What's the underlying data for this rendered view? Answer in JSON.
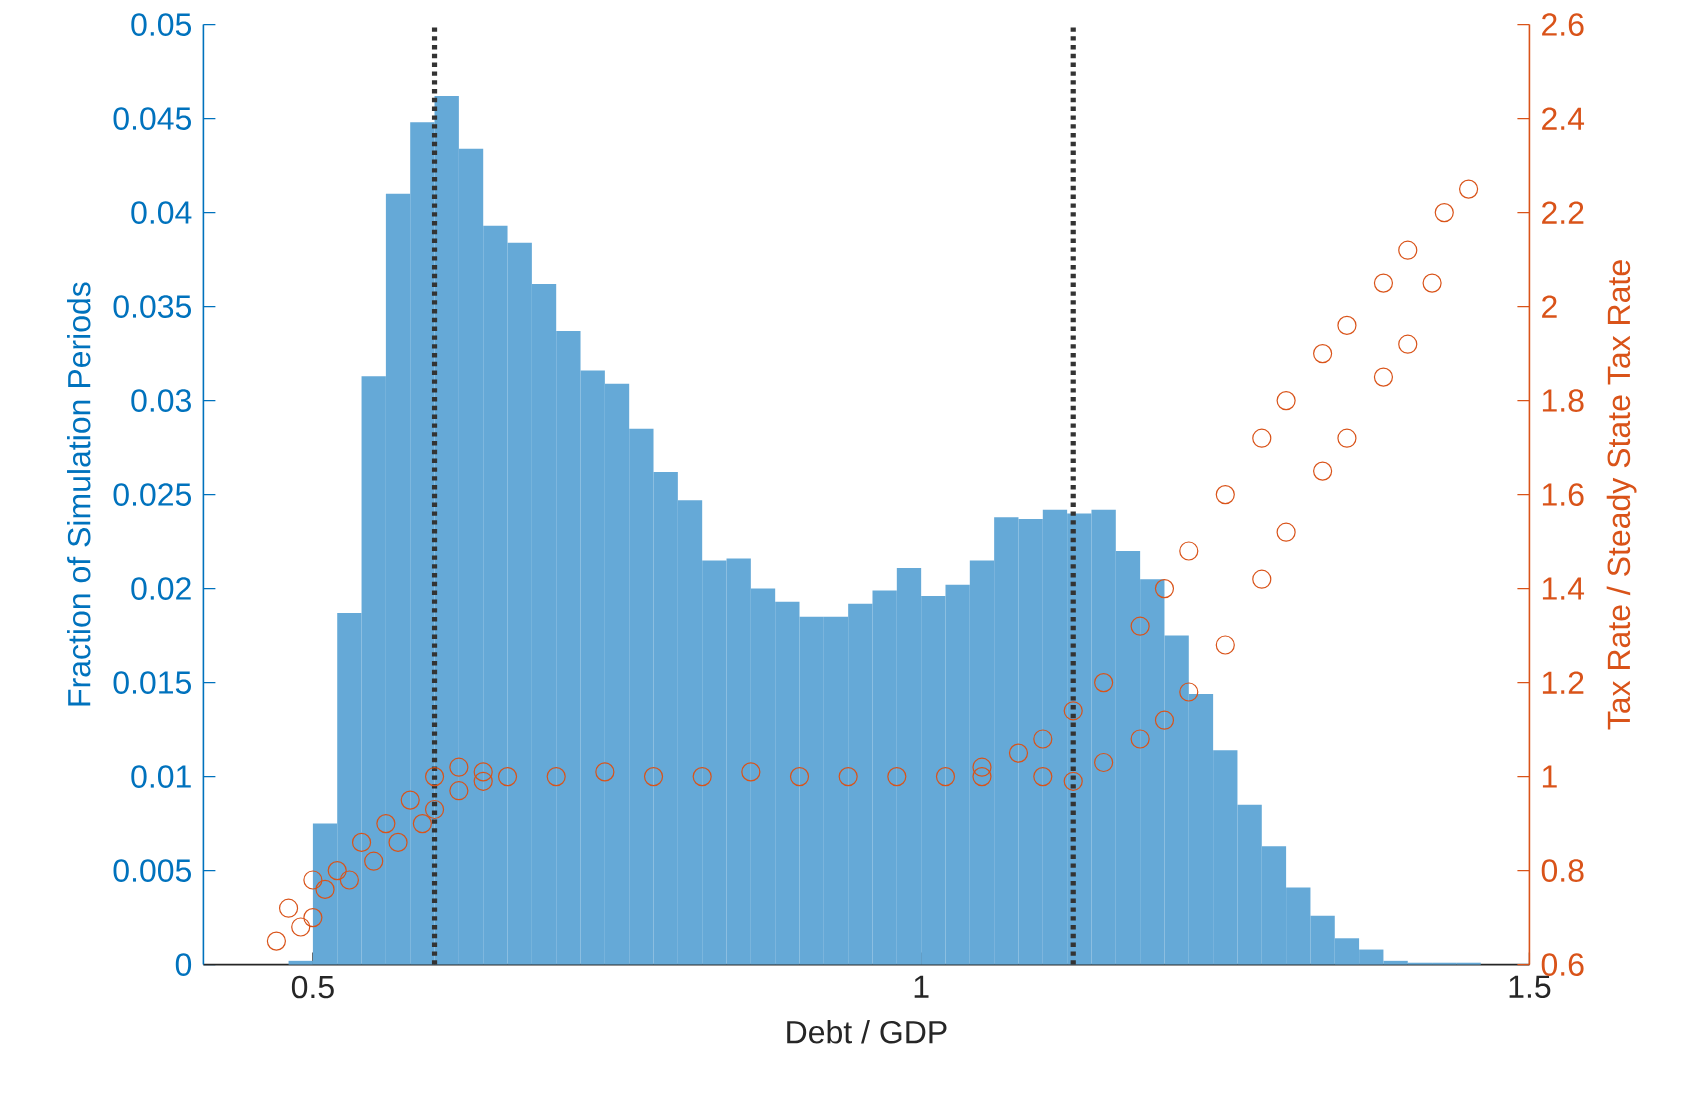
{
  "chart_data": {
    "type": "histogram",
    "xlabel": "Debt / GDP",
    "ylabel": "Fraction of Simulation Periods",
    "y2label": "Tax Rate / Steady State Tax Rate",
    "xlim": [
      0.41,
      1.5
    ],
    "xticks": [
      0.5,
      1,
      1.5
    ],
    "ylim": [
      0,
      0.05
    ],
    "yticks": [
      0,
      0.005,
      0.01,
      0.015,
      0.02,
      0.025,
      0.03,
      0.035,
      0.04,
      0.045,
      0.05
    ],
    "y2lim": [
      0.6,
      2.6
    ],
    "y2ticks": [
      0.6,
      0.8,
      1,
      1.2,
      1.4,
      1.6,
      1.8,
      2,
      2.2,
      2.4,
      2.6
    ],
    "ref_lines": [
      {
        "axis": "x",
        "value": 0.6,
        "color": "#333333",
        "line_style": "dotted"
      },
      {
        "axis": "x",
        "value": 1.125,
        "color": "#333333",
        "line_style": "dotted"
      }
    ],
    "series": [
      {
        "color": "#65a9d7",
        "bins": [
          0.48,
          0.5,
          0.52,
          0.54,
          0.56,
          0.58,
          0.6,
          0.62,
          0.64,
          0.66,
          0.68,
          0.7,
          0.72,
          0.74,
          0.76,
          0.78,
          0.8,
          0.82,
          0.84,
          0.86,
          0.88,
          0.9,
          0.92,
          0.94,
          0.96,
          0.98,
          1.0,
          1.02,
          1.04,
          1.06,
          1.08,
          1.1,
          1.12,
          1.14,
          1.16,
          1.18,
          1.2,
          1.22,
          1.24,
          1.26,
          1.28,
          1.3,
          1.32,
          1.34,
          1.36,
          1.38,
          1.4,
          1.42,
          1.44,
          1.46
        ],
        "values": [
          0.0002,
          0.0075,
          0.0187,
          0.0313,
          0.041,
          0.0448,
          0.0462,
          0.0434,
          0.0393,
          0.0384,
          0.0362,
          0.0337,
          0.0316,
          0.0309,
          0.0285,
          0.0262,
          0.0247,
          0.0215,
          0.0216,
          0.02,
          0.0193,
          0.0185,
          0.0185,
          0.0192,
          0.0199,
          0.0211,
          0.0196,
          0.0202,
          0.0215,
          0.0238,
          0.0237,
          0.0242,
          0.024,
          0.0242,
          0.022,
          0.0205,
          0.0175,
          0.0144,
          0.0114,
          0.0085,
          0.0063,
          0.0041,
          0.0026,
          0.0014,
          0.0008,
          0.0002,
          0.0001,
          0.0001,
          0.0001
        ]
      },
      {
        "type": "scatter",
        "axis": "y2",
        "color": "#d95319",
        "marker": "circle",
        "x": [
          0.47,
          0.48,
          0.49,
          0.5,
          0.5,
          0.51,
          0.52,
          0.53,
          0.54,
          0.55,
          0.56,
          0.57,
          0.58,
          0.59,
          0.6,
          0.6,
          0.62,
          0.62,
          0.64,
          0.64,
          0.66,
          0.7,
          0.74,
          0.78,
          0.82,
          0.86,
          0.9,
          0.94,
          0.98,
          1.02,
          1.05,
          1.05,
          1.08,
          1.1,
          1.1,
          1.125,
          1.125,
          1.15,
          1.15,
          1.18,
          1.18,
          1.2,
          1.2,
          1.22,
          1.22,
          1.25,
          1.25,
          1.28,
          1.28,
          1.3,
          1.3,
          1.33,
          1.33,
          1.35,
          1.35,
          1.38,
          1.38,
          1.4,
          1.4,
          1.42,
          1.43,
          1.45
        ],
        "values": [
          0.65,
          0.72,
          0.68,
          0.78,
          0.7,
          0.76,
          0.8,
          0.78,
          0.86,
          0.82,
          0.9,
          0.86,
          0.95,
          0.9,
          1.0,
          0.93,
          1.02,
          0.97,
          1.01,
          0.99,
          1.0,
          1.0,
          1.01,
          1.0,
          1.0,
          1.01,
          1.0,
          1.0,
          1.0,
          1.0,
          1.02,
          1.0,
          1.05,
          1.08,
          1.0,
          1.14,
          0.99,
          1.2,
          1.03,
          1.32,
          1.08,
          1.4,
          1.12,
          1.48,
          1.18,
          1.6,
          1.28,
          1.72,
          1.42,
          1.8,
          1.52,
          1.9,
          1.65,
          1.96,
          1.72,
          2.05,
          1.85,
          2.12,
          1.92,
          2.05,
          2.2,
          2.25
        ]
      }
    ]
  }
}
